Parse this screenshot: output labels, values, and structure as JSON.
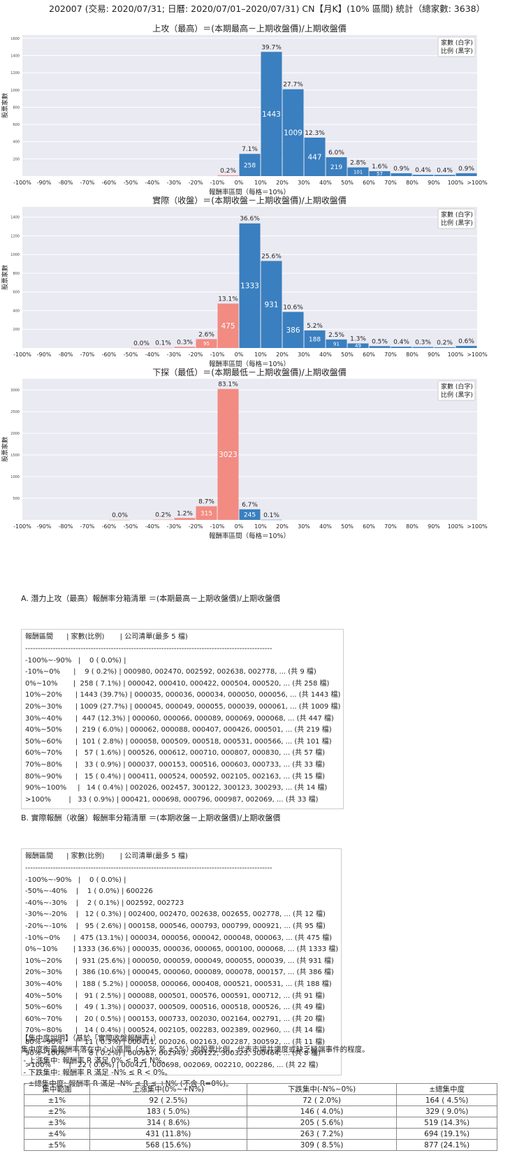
{
  "page_title": "202007 (交易: 2020/07/31; 日曆: 2020/07/01–2020/07/31) CN【月K】(10% 區間) 統計（總家數: 3638）",
  "chart_data": [
    {
      "type": "bar",
      "title": "上攻（最高）＝(本期最高－上期收盤價)/上期收盤價",
      "xlabel": "報酬率區間（每格＝10%）",
      "ylabel": "股票家數",
      "legend": [
        "家數 (白字)",
        "比例 (黑字)"
      ],
      "legend_position": "top-right",
      "xticks": [
        "-100%",
        "-90%",
        "-80%",
        "-70%",
        "-60%",
        "-50%",
        "-40%",
        "-30%",
        "-20%",
        "-10%",
        "0%",
        "10%",
        "20%",
        "30%",
        "40%",
        "50%",
        "60%",
        "70%",
        "80%",
        "90%",
        "100%",
        ">100%"
      ],
      "yticks": [
        200,
        400,
        600,
        800,
        1000,
        1200,
        1400,
        1600
      ],
      "ylim": [
        0,
        1640
      ],
      "bins": [
        {
          "start": -10,
          "count": 9,
          "pct": "0.2%",
          "sign": "neg"
        },
        {
          "start": 0,
          "count": 258,
          "pct": "7.1%",
          "sign": "pos"
        },
        {
          "start": 10,
          "count": 1443,
          "pct": "39.7%",
          "sign": "pos"
        },
        {
          "start": 20,
          "count": 1009,
          "pct": "27.7%",
          "sign": "pos"
        },
        {
          "start": 30,
          "count": 447,
          "pct": "12.3%",
          "sign": "pos"
        },
        {
          "start": 40,
          "count": 219,
          "pct": "6.0%",
          "sign": "pos"
        },
        {
          "start": 50,
          "count": 101,
          "pct": "2.8%",
          "sign": "pos"
        },
        {
          "start": 60,
          "count": 57,
          "pct": "1.6%",
          "sign": "pos"
        },
        {
          "start": 70,
          "count": 33,
          "pct": "0.9%",
          "sign": "pos"
        },
        {
          "start": 80,
          "count": 15,
          "pct": "0.4%",
          "sign": "pos"
        },
        {
          "start": 90,
          "count": 14,
          "pct": "0.4%",
          "sign": "pos"
        },
        {
          "start": 100,
          "count": 33,
          "pct": "0.9%",
          "sign": "pos"
        }
      ]
    },
    {
      "type": "bar",
      "title": "實際（收盤）＝(本期收盤－上期收盤價)/上期收盤價",
      "xlabel": "報酬率區間（每格＝10%）",
      "ylabel": "股票家數",
      "legend": [
        "家數 (白字)",
        "比例 (黑字)"
      ],
      "legend_position": "top-right",
      "xticks": [
        "-100%",
        "-90%",
        "-80%",
        "-70%",
        "-60%",
        "-50%",
        "-40%",
        "-30%",
        "-20%",
        "-10%",
        "0%",
        "10%",
        "20%",
        "30%",
        "40%",
        "50%",
        "60%",
        "70%",
        "80%",
        "90%",
        "100%",
        ">100%"
      ],
      "yticks": [
        200,
        400,
        600,
        800,
        1000,
        1200,
        1400
      ],
      "ylim": [
        0,
        1510
      ],
      "bins": [
        {
          "start": -50,
          "count": 1,
          "pct": "0.0%",
          "sign": "neg"
        },
        {
          "start": -40,
          "count": 2,
          "pct": "0.1%",
          "sign": "neg"
        },
        {
          "start": -30,
          "count": 12,
          "pct": "0.3%",
          "sign": "neg"
        },
        {
          "start": -20,
          "count": 95,
          "pct": "2.6%",
          "sign": "neg"
        },
        {
          "start": -10,
          "count": 475,
          "pct": "13.1%",
          "sign": "neg"
        },
        {
          "start": 0,
          "count": 1333,
          "pct": "36.6%",
          "sign": "pos"
        },
        {
          "start": 10,
          "count": 931,
          "pct": "25.6%",
          "sign": "pos"
        },
        {
          "start": 20,
          "count": 386,
          "pct": "10.6%",
          "sign": "pos"
        },
        {
          "start": 30,
          "count": 188,
          "pct": "5.2%",
          "sign": "pos"
        },
        {
          "start": 40,
          "count": 91,
          "pct": "2.5%",
          "sign": "pos"
        },
        {
          "start": 50,
          "count": 49,
          "pct": "1.3%",
          "sign": "pos"
        },
        {
          "start": 60,
          "count": 20,
          "pct": "0.5%",
          "sign": "pos"
        },
        {
          "start": 70,
          "count": 14,
          "pct": "0.4%",
          "sign": "pos"
        },
        {
          "start": 80,
          "count": 11,
          "pct": "0.3%",
          "sign": "pos"
        },
        {
          "start": 90,
          "count": 8,
          "pct": "0.2%",
          "sign": "pos"
        },
        {
          "start": 100,
          "count": 22,
          "pct": "0.6%",
          "sign": "pos"
        }
      ]
    },
    {
      "type": "bar",
      "title": "下探（最低）＝(本期最低－上期收盤價)/上期收盤價",
      "xlabel": "報酬率區間（每格＝10%）",
      "ylabel": "股票家數",
      "legend": [
        "家數 (白字)",
        "比例 (黑字)"
      ],
      "legend_position": "top-right",
      "xticks": [
        "-100%",
        "-90%",
        "-80%",
        "-70%",
        "-60%",
        "-50%",
        "-40%",
        "-30%",
        "-20%",
        "-10%",
        "0%",
        "10%",
        "20%",
        "30%",
        "40%",
        "50%",
        "60%",
        "70%",
        "80%",
        "90%",
        "100%",
        ">100%"
      ],
      "yticks": [
        500,
        1000,
        1500,
        2000,
        2500,
        3000
      ],
      "ylim": [
        0,
        3260
      ],
      "bins": [
        {
          "start": -60,
          "count": 1,
          "pct": "0.0%",
          "sign": "neg"
        },
        {
          "start": -40,
          "count": 6,
          "pct": "0.2%",
          "sign": "neg"
        },
        {
          "start": -30,
          "count": 44,
          "pct": "1.2%",
          "sign": "neg"
        },
        {
          "start": -20,
          "count": 315,
          "pct": "8.7%",
          "sign": "neg"
        },
        {
          "start": -10,
          "count": 3023,
          "pct": "83.1%",
          "sign": "neg"
        },
        {
          "start": 0,
          "count": 245,
          "pct": "6.7%",
          "sign": "pos"
        },
        {
          "start": 10,
          "count": 4,
          "pct": "0.1%",
          "sign": "pos"
        }
      ]
    }
  ],
  "tables": [
    {
      "title": "A. 潛力上攻（最高）報酬率分箱清單 ＝(本期最高－上期收盤價)/上期收盤價",
      "lines": [
        "報酬區間      | 家數(比例)       | 公司清單(最多 5 檔)",
        "--------------------------------------------------------------------------------------------------",
        "-100%~-90%   |    0 ( 0.0%) |",
        "-10%~0%      |    9 ( 0.2%) | 000980, 002470, 002592, 002638, 002778, ... (共 9 檔)",
        "0%~10%       |  258 ( 7.1%) | 000042, 000410, 000422, 000504, 000520, ... (共 258 檔)",
        "10%~20%      | 1443 (39.7%) | 000035, 000036, 000034, 000050, 000056, ... (共 1443 檔)",
        "20%~30%      | 1009 (27.7%) | 000045, 000049, 000055, 000039, 000061, ... (共 1009 檔)",
        "30%~40%      |  447 (12.3%) | 000060, 000066, 000089, 000069, 000068, ... (共 447 檔)",
        "40%~50%      |  219 ( 6.0%) | 000062, 000088, 000407, 000426, 000501, ... (共 219 檔)",
        "50%~60%      |  101 ( 2.8%) | 000058, 000509, 000518, 000531, 000566, ... (共 101 檔)",
        "60%~70%      |   57 ( 1.6%) | 000526, 000612, 000710, 000807, 000830, ... (共 57 檔)",
        "70%~80%      |   33 ( 0.9%) | 000037, 000153, 000516, 000603, 000733, ... (共 33 檔)",
        "80%~90%      |   15 ( 0.4%) | 000411, 000524, 000592, 002105, 002163, ... (共 15 檔)",
        "90%~100%     |   14 ( 0.4%) | 002026, 002457, 300122, 300123, 300293, ... (共 14 檔)",
        ">100%        |   33 ( 0.9%) | 000421, 000698, 000796, 000987, 002069, ... (共 33 檔)"
      ]
    },
    {
      "title": "B. 實際報酬（收盤）報酬率分箱清單 ＝(本期收盤－上期收盤價)/上期收盤價",
      "lines": [
        "報酬區間      | 家數(比例)       | 公司清單(最多 5 檔)",
        "--------------------------------------------------------------------------------------------------",
        "-100%~-90%   |    0 ( 0.0%) |",
        "-50%~-40%    |    1 ( 0.0%) | 600226",
        "-40%~-30%    |    2 ( 0.1%) | 002592, 002723",
        "-30%~-20%    |   12 ( 0.3%) | 002400, 002470, 002638, 002655, 002778, ... (共 12 檔)",
        "-20%~-10%    |   95 ( 2.6%) | 000158, 000546, 000793, 000799, 000921, ... (共 95 檔)",
        "-10%~0%      |  475 (13.1%) | 000034, 000056, 000042, 000048, 000063, ... (共 475 檔)",
        "0%~10%       | 1333 (36.6%) | 000035, 000036, 000065, 000100, 000068, ... (共 1333 檔)",
        "10%~20%      |  931 (25.6%) | 000050, 000059, 000049, 000055, 000039, ... (共 931 檔)",
        "20%~30%      |  386 (10.6%) | 000045, 000060, 000089, 000078, 000157, ... (共 386 檔)",
        "30%~40%      |  188 ( 5.2%) | 000058, 000066, 000408, 000521, 000531, ... (共 188 檔)",
        "40%~50%      |   91 ( 2.5%) | 000088, 000501, 000576, 000591, 000712, ... (共 91 檔)",
        "50%~60%      |   49 ( 1.3%) | 000037, 000509, 000516, 000518, 000526, ... (共 49 檔)",
        "60%~70%      |   20 ( 0.5%) | 000153, 000733, 002030, 002164, 002791, ... (共 20 檔)",
        "70%~80%      |   14 ( 0.4%) | 000524, 002105, 002283, 002389, 002960, ... (共 14 檔)",
        "80%~90%      |   11 ( 0.3%) | 000411, 002026, 002163, 002287, 300592, ... (共 11 檔)",
        "90%~100%     |    8 ( 0.2%) | 000987, 002949, 300122, 300323, 300464, ... (共 8 檔)",
        ">100%        |   22 ( 0.6%) | 000421, 000698, 002069, 002210, 002286, ... (共 22 檔)"
      ]
    }
  ],
  "concentration": {
    "lines": [
      "【集中度說明】（基於「實際收盤報酬率」）",
      "集中度衡量報酬率落在中心小區間（±1% 至 ±5%）的股票比例，代表市場共識度或缺乏極端事件的程度。",
      " - 上漲集中: 報酬率 R 滿足 0% < R ≤ N%。",
      " - 下跌集中: 報酬率 R 滿足 -N% ≤ R < 0%。",
      " - ±總集中度: 報酬率 R 滿足 -N% ≤ R ≤ +N% (不含 R=0%)。"
    ],
    "headers": [
      "集中範圍",
      "上漲集中(0%~+N%)",
      "下跌集中(-N%~0%)",
      "±總集中度"
    ],
    "rows": [
      [
        "±1%",
        "92 ( 2.5%)",
        "72 ( 2.0%)",
        "164 ( 4.5%)"
      ],
      [
        "±2%",
        "183 ( 5.0%)",
        "146 ( 4.0%)",
        "329 ( 9.0%)"
      ],
      [
        "±3%",
        "314 ( 8.6%)",
        "205 ( 5.6%)",
        "519 (14.3%)"
      ],
      [
        "±4%",
        "431 (11.8%)",
        "263 ( 7.2%)",
        "694 (19.1%)"
      ],
      [
        "±5%",
        "568 (15.6%)",
        "309 ( 8.5%)",
        "877 (24.1%)"
      ]
    ]
  },
  "colors": {
    "positive": "#3a7fbf",
    "negative": "#f28b82",
    "plot_bg": "#eaeaf2",
    "gridline": "#ffffff"
  }
}
